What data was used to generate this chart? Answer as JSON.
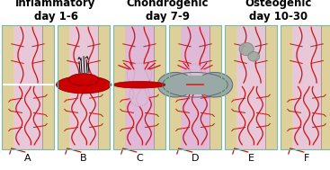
{
  "title_inflammatory": "Inflammatory\nday 1-6",
  "title_chondrogenic": "Chondrogenic\nday 7-9",
  "title_osteogenic": "Osteogenic\nday 10-30",
  "labels": [
    "A",
    "B",
    "C",
    "D",
    "E",
    "F"
  ],
  "bg_color": "#ffffff",
  "bone_outer_color": "#ddd09a",
  "bone_inner_color": "#e8c8d8",
  "bone_border_color": "#a09060",
  "blood_red": "#cc1111",
  "clot_red": "#cc0000",
  "cart_color": "#d8b8d8",
  "callus_gray": "#909898",
  "title_fontsize": 8.5,
  "label_fontsize": 8,
  "fig_width": 3.67,
  "fig_height": 1.89
}
